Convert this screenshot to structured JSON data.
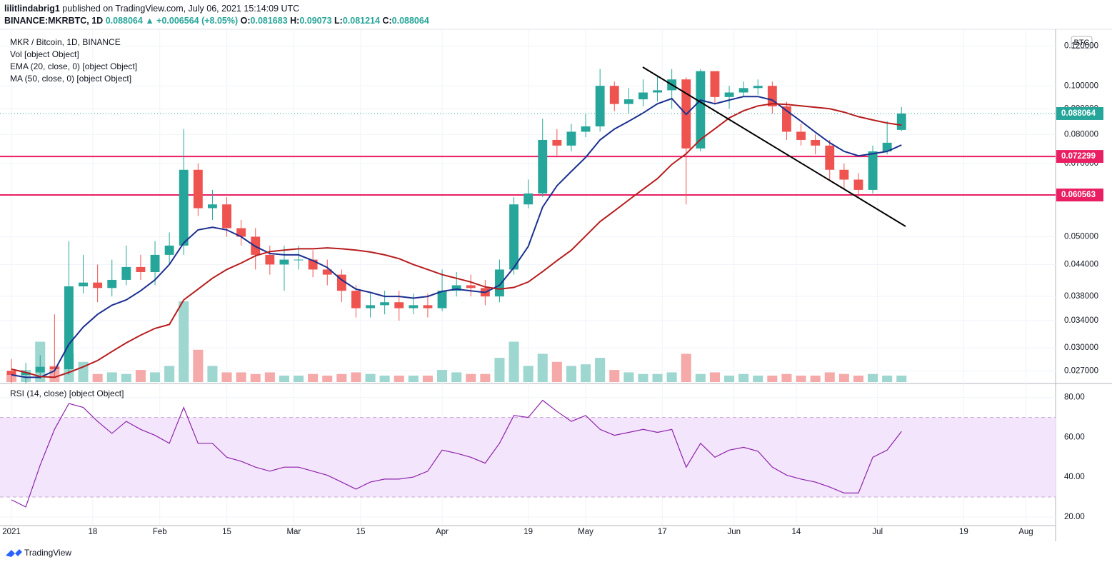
{
  "header": {
    "author": "lilitlindabrig1",
    "published": "published on TradingView.com, July 06, 2021 15:14:09 UTC",
    "symbol": "BINANCE:MKRBTC, 1D",
    "change": "▲ +0.006564 (+8.05%)",
    "o_label": "O:",
    "h_label": "H:",
    "l_label": "L:",
    "c_label": "C:"
  },
  "footer": {
    "brand": "TradingView"
  },
  "chart_data": {
    "type": "candlestick",
    "legend_title": "MKR / Bitcoin, 1D, BINANCE",
    "currency": "BTC",
    "log_scale": true,
    "grid": true,
    "up_color": "#26a69a",
    "down_color": "#ef5350",
    "xlim": [
      -1.2,
      218.2
    ],
    "xticks": [
      {
        "value": 0,
        "label": "2021"
      },
      {
        "value": 17,
        "label": "18"
      },
      {
        "value": 31,
        "label": "Feb"
      },
      {
        "value": 45,
        "label": "15"
      },
      {
        "value": 59,
        "label": "Mar"
      },
      {
        "value": 73,
        "label": "15"
      },
      {
        "value": 90,
        "label": "Apr"
      },
      {
        "value": 108,
        "label": "19"
      },
      {
        "value": 120,
        "label": "May"
      },
      {
        "value": 136,
        "label": "17"
      },
      {
        "value": 151,
        "label": "Jun"
      },
      {
        "value": 164,
        "label": "14"
      },
      {
        "value": 181,
        "label": "Jul"
      },
      {
        "value": 199,
        "label": "19"
      },
      {
        "value": 212,
        "label": "Aug"
      }
    ],
    "ylim": [
      0.02564,
      0.128
    ],
    "yticks": [
      {
        "value": 0.12,
        "label": "0.120000"
      },
      {
        "value": 0.1,
        "label": "0.100000"
      },
      {
        "value": 0.09,
        "label": "0.090000"
      },
      {
        "value": 0.08,
        "label": "0.080000"
      },
      {
        "value": 0.07,
        "label": "0.070000"
      },
      {
        "value": 0.05,
        "label": "0.050000"
      },
      {
        "value": 0.044,
        "label": "0.044000"
      },
      {
        "value": 0.038,
        "label": "0.038000"
      },
      {
        "value": 0.034,
        "label": "0.034000"
      },
      {
        "value": 0.03,
        "label": "0.030000"
      },
      {
        "value": 0.027,
        "label": "0.027000"
      }
    ],
    "hlines": [
      0.072299,
      0.060563
    ],
    "hline_color": "#e91e63",
    "x": [
      0,
      3,
      6,
      9,
      12,
      15,
      18,
      21,
      24,
      27,
      30,
      33,
      36,
      39,
      42,
      45,
      48,
      51,
      54,
      57,
      60,
      63,
      66,
      69,
      72,
      75,
      78,
      81,
      84,
      87,
      90,
      93,
      96,
      99,
      102,
      105,
      108,
      111,
      114,
      117,
      120,
      123,
      126,
      129,
      132,
      135,
      138,
      141,
      144,
      147,
      150,
      153,
      156,
      159,
      162,
      165,
      168,
      171,
      174,
      177,
      180,
      183,
      186
    ],
    "open": [
      0.027,
      0.0265,
      0.0268,
      0.0275,
      0.0272,
      0.0398,
      0.0405,
      0.0395,
      0.041,
      0.0435,
      0.0425,
      0.046,
      0.048,
      0.068,
      0.057,
      0.058,
      0.052,
      0.05,
      0.046,
      0.044,
      0.045,
      0.045,
      0.043,
      0.042,
      0.039,
      0.036,
      0.0365,
      0.037,
      0.036,
      0.0365,
      0.036,
      0.039,
      0.04,
      0.0395,
      0.038,
      0.043,
      0.058,
      0.061,
      0.078,
      0.076,
      0.081,
      0.083,
      0.1,
      0.092,
      0.094,
      0.097,
      0.098,
      0.103,
      0.075,
      0.107,
      0.095,
      0.097,
      0.099,
      0.1,
      0.091,
      0.081,
      0.078,
      0.076,
      0.068,
      0.065,
      0.062,
      0.074,
      0.081683
    ],
    "high": [
      0.0285,
      0.028,
      0.029,
      0.035,
      0.049,
      0.046,
      0.044,
      0.045,
      0.048,
      0.046,
      0.049,
      0.051,
      0.082,
      0.07,
      0.062,
      0.06,
      0.054,
      0.052,
      0.048,
      0.048,
      0.048,
      0.047,
      0.045,
      0.043,
      0.04,
      0.0385,
      0.039,
      0.039,
      0.0385,
      0.0385,
      0.043,
      0.0425,
      0.042,
      0.041,
      0.045,
      0.06,
      0.065,
      0.086,
      0.082,
      0.084,
      0.088,
      0.108,
      0.102,
      0.099,
      0.103,
      0.105,
      0.108,
      0.104,
      0.108,
      0.106,
      0.1,
      0.102,
      0.103,
      0.102,
      0.093,
      0.084,
      0.08,
      0.078,
      0.07,
      0.067,
      0.076,
      0.085,
      0.09073
    ],
    "low": [
      0.0255,
      0.0255,
      0.026,
      0.0262,
      0.0265,
      0.0385,
      0.037,
      0.038,
      0.04,
      0.041,
      0.04,
      0.044,
      0.046,
      0.055,
      0.054,
      0.05,
      0.048,
      0.043,
      0.042,
      0.039,
      0.043,
      0.0415,
      0.04,
      0.037,
      0.0345,
      0.0345,
      0.035,
      0.034,
      0.035,
      0.0345,
      0.0355,
      0.038,
      0.038,
      0.0365,
      0.037,
      0.042,
      0.057,
      0.06,
      0.072,
      0.074,
      0.079,
      0.081,
      0.089,
      0.088,
      0.091,
      0.093,
      0.09,
      0.058,
      0.074,
      0.092,
      0.09,
      0.095,
      0.096,
      0.088,
      0.078,
      0.076,
      0.073,
      0.065,
      0.062,
      0.06,
      0.061,
      0.073,
      0.081214
    ],
    "close": [
      0.0265,
      0.0268,
      0.0275,
      0.0272,
      0.0398,
      0.0405,
      0.0395,
      0.041,
      0.0435,
      0.0425,
      0.046,
      0.048,
      0.068,
      0.057,
      0.058,
      0.052,
      0.05,
      0.046,
      0.044,
      0.045,
      0.045,
      0.043,
      0.042,
      0.039,
      0.036,
      0.0365,
      0.037,
      0.036,
      0.0365,
      0.036,
      0.039,
      0.04,
      0.0395,
      0.038,
      0.043,
      0.058,
      0.061,
      0.078,
      0.076,
      0.081,
      0.083,
      0.1,
      0.092,
      0.094,
      0.097,
      0.098,
      0.103,
      0.075,
      0.107,
      0.095,
      0.097,
      0.099,
      0.1,
      0.091,
      0.081,
      0.078,
      0.076,
      0.068,
      0.065,
      0.062,
      0.074,
      0.077,
      0.088064
    ],
    "volume": {
      "name": "Vol [object Object]",
      "up_color": "#9ed6d0",
      "down_color": "#f5aaa9",
      "values": [
        10,
        15,
        50,
        20,
        35,
        25,
        10,
        12,
        10,
        15,
        12,
        20,
        100,
        40,
        20,
        12,
        12,
        10,
        12,
        8,
        8,
        10,
        8,
        10,
        12,
        10,
        8,
        8,
        8,
        8,
        15,
        12,
        10,
        10,
        30,
        50,
        20,
        35,
        25,
        20,
        22,
        30,
        15,
        12,
        10,
        10,
        12,
        35,
        10,
        12,
        8,
        10,
        8,
        8,
        10,
        8,
        8,
        12,
        10,
        8,
        10,
        8,
        8
      ]
    },
    "series": [
      {
        "name": "EMA (20, close, 0) [object Object]",
        "color": "#1b2f8f",
        "values": [
          0.0265,
          0.0262,
          0.0262,
          0.027,
          0.0305,
          0.033,
          0.035,
          0.0365,
          0.0374,
          0.039,
          0.041,
          0.044,
          0.0486,
          0.0516,
          0.0522,
          0.0516,
          0.05,
          0.0478,
          0.0463,
          0.046,
          0.046,
          0.0448,
          0.0434,
          0.041,
          0.0393,
          0.0387,
          0.038,
          0.038,
          0.0377,
          0.038,
          0.0389,
          0.0393,
          0.039,
          0.0387,
          0.04,
          0.0434,
          0.0478,
          0.0573,
          0.0632,
          0.0675,
          0.072,
          0.078,
          0.082,
          0.085,
          0.0883,
          0.0921,
          0.0943,
          0.0877,
          0.0937,
          0.0921,
          0.0937,
          0.0952,
          0.0952,
          0.0937,
          0.0892,
          0.085,
          0.0808,
          0.077,
          0.074,
          0.0725,
          0.0732,
          0.074,
          0.0762
        ]
      },
      {
        "name": "MA (50, close, 0) [object Object]",
        "color": "#b71c1c",
        "values": [
          0.0272,
          0.0268,
          0.0263,
          0.0262,
          0.0268,
          0.0275,
          0.0283,
          0.0295,
          0.0307,
          0.0318,
          0.0328,
          0.0334,
          0.0374,
          0.0393,
          0.0413,
          0.043,
          0.0443,
          0.0458,
          0.0467,
          0.047,
          0.0473,
          0.0473,
          0.0475,
          0.0473,
          0.047,
          0.0466,
          0.046,
          0.0452,
          0.044,
          0.043,
          0.042,
          0.0413,
          0.0406,
          0.0397,
          0.0393,
          0.0396,
          0.0406,
          0.0426,
          0.0448,
          0.047,
          0.0502,
          0.0536,
          0.0563,
          0.0592,
          0.0622,
          0.0653,
          0.0697,
          0.0732,
          0.0782,
          0.0821,
          0.0863,
          0.0892,
          0.0912,
          0.0921,
          0.0918,
          0.0912,
          0.0906,
          0.09,
          0.0886,
          0.0868,
          0.0855,
          0.0843,
          0.0835
        ]
      }
    ],
    "rsi": {
      "name": "RSI (14, close) [object Object]",
      "color": "#8e24aa",
      "band": [
        30,
        70
      ],
      "band_color": "#f3e5fb",
      "ylim": [
        16,
        86
      ],
      "yticks": [
        {
          "value": 80,
          "label": "80.00"
        },
        {
          "value": 60,
          "label": "60.00"
        },
        {
          "value": 40,
          "label": "40.00"
        },
        {
          "value": 20,
          "label": "20.00"
        }
      ],
      "values": [
        28.6,
        25,
        46,
        64,
        77,
        75,
        68,
        62,
        68,
        64,
        61,
        57,
        75,
        57,
        57,
        50,
        48,
        45,
        43,
        45,
        45,
        43,
        41,
        37.5,
        34,
        37.5,
        39,
        39,
        40,
        43,
        53.6,
        52,
        50,
        47,
        57,
        71,
        70,
        78.6,
        73,
        68,
        71,
        64,
        61,
        62.5,
        64,
        62.5,
        64,
        45,
        57,
        50,
        53.6,
        55,
        53,
        45,
        41,
        39,
        37.5,
        35,
        32,
        32,
        50,
        53.6,
        63
      ]
    }
  }
}
